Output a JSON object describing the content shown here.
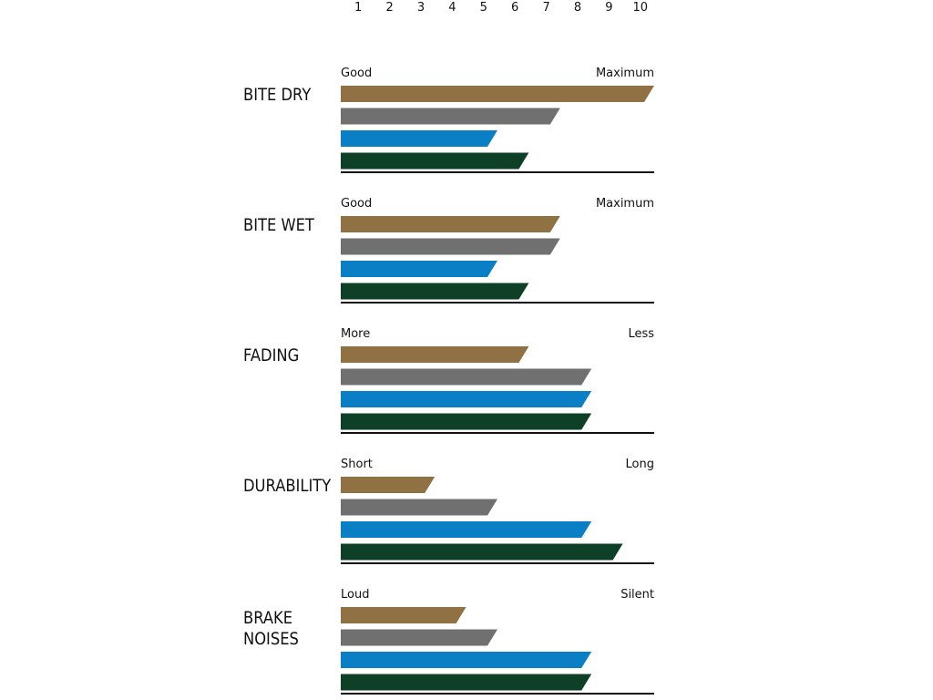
{
  "chart_data": {
    "type": "bar",
    "orientation": "horizontal",
    "xlim": [
      0,
      10
    ],
    "x_ticks": [
      "1",
      "2",
      "3",
      "4",
      "5",
      "6",
      "7",
      "8",
      "9",
      "10"
    ],
    "series_colors": [
      "#8f7143",
      "#707070",
      "#0a7fc6",
      "#0d4027"
    ],
    "panels": [
      {
        "title_lines": [
          "BITE DRY"
        ],
        "low_label": "Good",
        "high_label": "Maximum",
        "values": [
          10,
          7,
          5,
          6
        ]
      },
      {
        "title_lines": [
          "BITE WET"
        ],
        "low_label": "Good",
        "high_label": "Maximum",
        "values": [
          7,
          7,
          5,
          6
        ]
      },
      {
        "title_lines": [
          "FADING"
        ],
        "low_label": "More",
        "high_label": "Less",
        "values": [
          6,
          8,
          8,
          8
        ]
      },
      {
        "title_lines": [
          "DURABILITY"
        ],
        "low_label": "Short",
        "high_label": "Long",
        "values": [
          3,
          5,
          8,
          9
        ]
      },
      {
        "title_lines": [
          "BRAKE",
          "NOISES"
        ],
        "low_label": "Loud",
        "high_label": "Silent",
        "values": [
          4,
          5,
          8,
          8
        ]
      }
    ]
  }
}
